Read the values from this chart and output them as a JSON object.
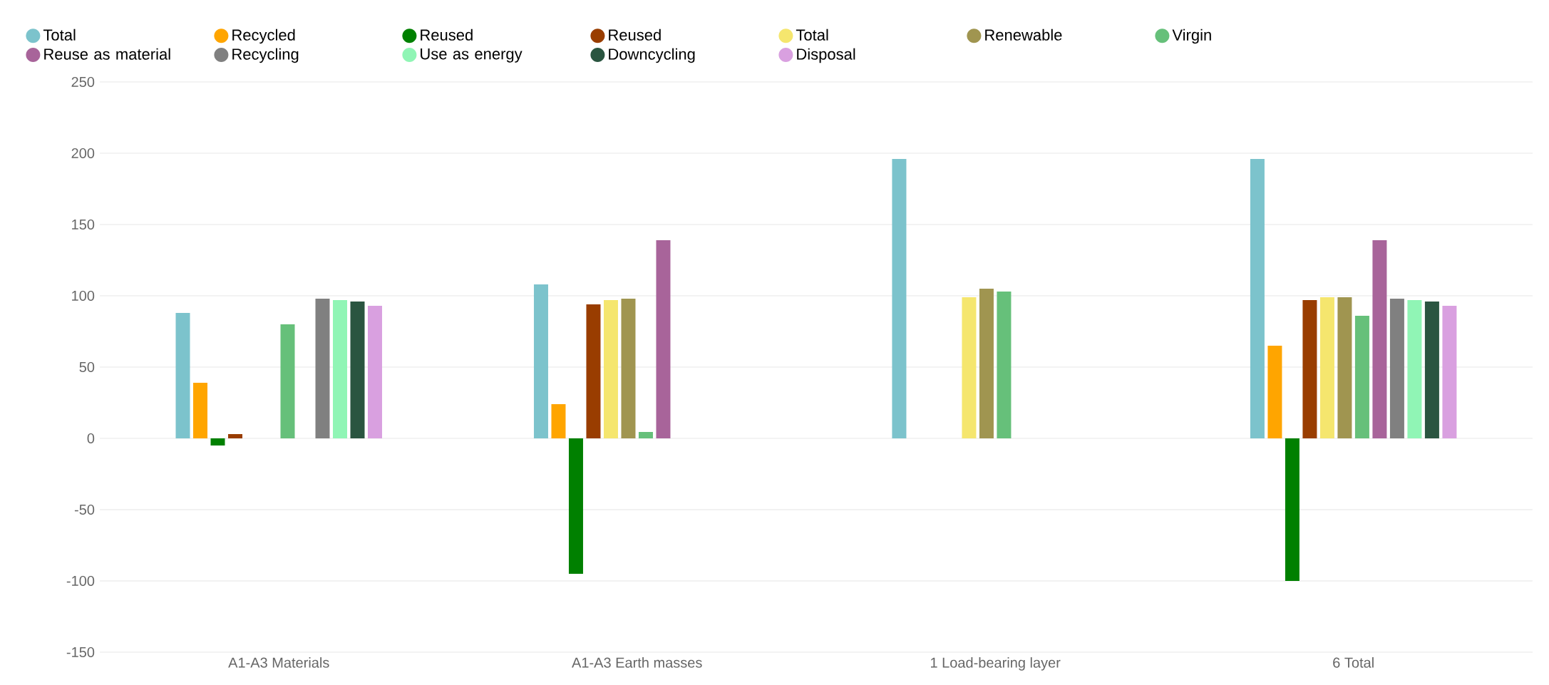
{
  "chart_data": {
    "type": "bar",
    "categories": [
      "A1-A3 Materials",
      "A1-A3 Earth masses",
      "1 Load-bearing layer",
      "6 Total"
    ],
    "ylim": [
      -150,
      250
    ],
    "yticks": [
      -150,
      -100,
      -50,
      0,
      50,
      100,
      150,
      200,
      250
    ],
    "grid": "y",
    "legend": "top left",
    "series": [
      {
        "name": "Total",
        "color": "#7cc3cc",
        "values": [
          88,
          108,
          196,
          196
        ]
      },
      {
        "name": "Recycled",
        "color": "#ffa500",
        "values": [
          39,
          24,
          null,
          65
        ]
      },
      {
        "name": "Reused",
        "color": "#008000",
        "values": [
          -5,
          -95,
          null,
          -100
        ]
      },
      {
        "name": "Reused",
        "color": "#993d00",
        "values": [
          3,
          94,
          null,
          97
        ]
      },
      {
        "name": "Total",
        "color": "#f5e66e",
        "values": [
          null,
          97,
          99,
          99
        ]
      },
      {
        "name": "Renewable",
        "color": "#a09550",
        "values": [
          null,
          98,
          105,
          99
        ]
      },
      {
        "name": "Virgin",
        "color": "#66c07a",
        "values": [
          80,
          4.5,
          103,
          86
        ]
      },
      {
        "name": "Reuse as material",
        "color": "#a8649a",
        "values": [
          null,
          139,
          null,
          139
        ]
      },
      {
        "name": "Recycling",
        "color": "#808080",
        "values": [
          98,
          null,
          null,
          98
        ]
      },
      {
        "name": "Use as energy",
        "color": "#90f5b5",
        "values": [
          97,
          null,
          null,
          97
        ]
      },
      {
        "name": "Downcycling",
        "color": "#2a5540",
        "values": [
          96,
          null,
          null,
          96
        ]
      },
      {
        "name": "Disposal",
        "color": "#d9a0e0",
        "values": [
          93,
          null,
          null,
          93
        ]
      }
    ]
  }
}
